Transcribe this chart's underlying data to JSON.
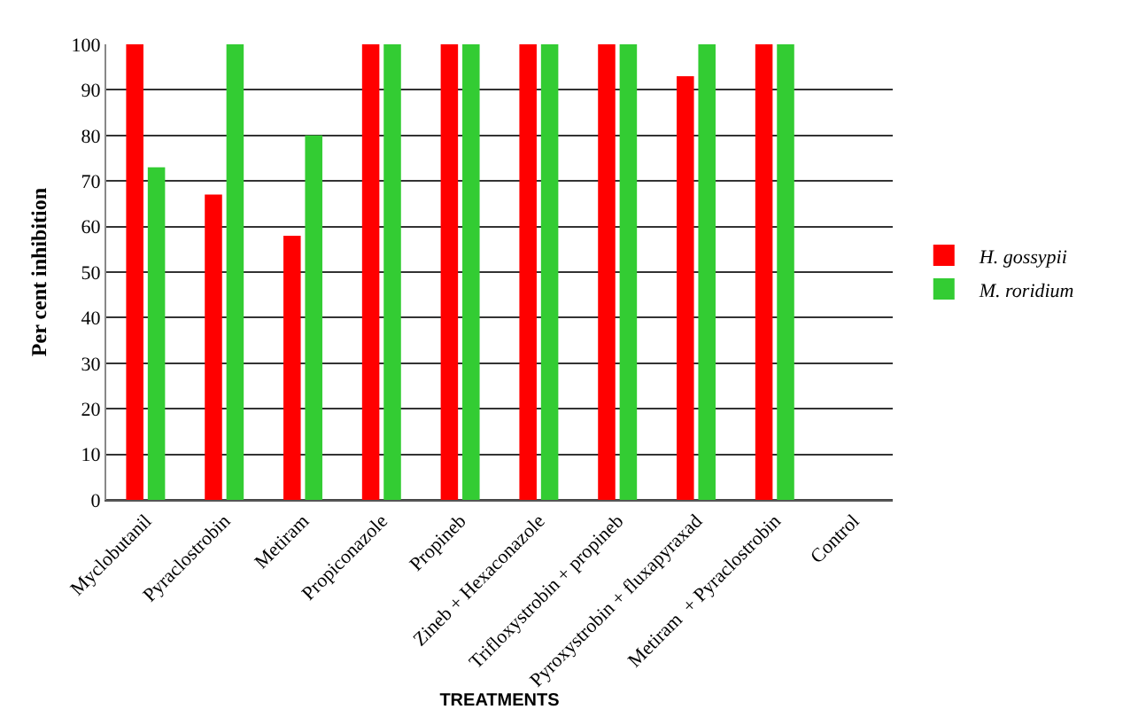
{
  "chart_data": {
    "type": "bar",
    "xlabel": "TREATMENTS",
    "ylabel": "Per cent inhibition",
    "categories": [
      "Myclobutanil",
      "Pyraclostrobin",
      "Metiram",
      "Propiconazole",
      "Propineb",
      "Zineb + Hexaconazole",
      "Trifloxystrobin + propineb",
      "Pyroxystrobin + fluxapyraxad",
      "Metiram  + Pyraclostrobin",
      "Control"
    ],
    "series": [
      {
        "name": "H. gossypii",
        "color": "#ff0000",
        "values": [
          100,
          67,
          58,
          100,
          100,
          100,
          100,
          93,
          100,
          0
        ]
      },
      {
        "name": "M. roridium",
        "color": "#33cc33",
        "values": [
          73,
          100,
          80,
          100,
          100,
          100,
          100,
          100,
          100,
          0
        ]
      }
    ],
    "ylim": [
      0,
      100
    ],
    "yticks": [
      0,
      10,
      20,
      30,
      40,
      50,
      60,
      70,
      80,
      90,
      100
    ],
    "grid": "y",
    "legend": "right"
  }
}
